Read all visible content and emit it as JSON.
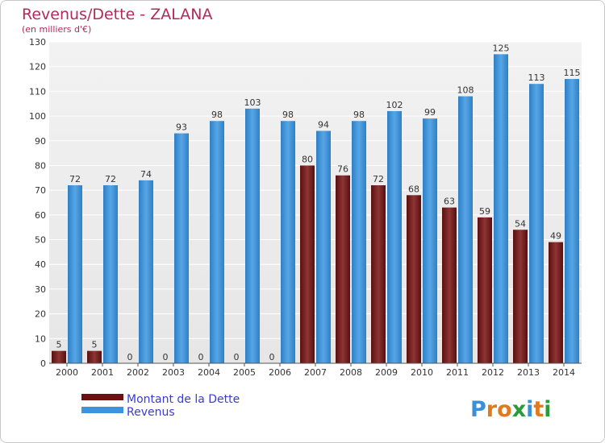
{
  "chart_data": {
    "type": "bar",
    "title": "Revenus/Dette - ZALANA",
    "subtitle": "(en milliers d'€)",
    "categories": [
      "2000",
      "2001",
      "2002",
      "2003",
      "2004",
      "2005",
      "2006",
      "2007",
      "2008",
      "2009",
      "2010",
      "2011",
      "2012",
      "2013",
      "2014"
    ],
    "series": [
      {
        "name": "Montant de la Dette",
        "color": "#7a1f1f",
        "values": [
          5,
          5,
          0,
          0,
          0,
          0,
          0,
          80,
          76,
          72,
          68,
          63,
          59,
          54,
          49
        ]
      },
      {
        "name": "Revenus",
        "color": "#3f93d8",
        "values": [
          72,
          72,
          74,
          93,
          98,
          103,
          98,
          94,
          98,
          102,
          99,
          108,
          125,
          113,
          115
        ]
      }
    ],
    "ylim": [
      0,
      130
    ],
    "ytick_step": 10,
    "grid": true,
    "legend_position": "bottom-left"
  },
  "logo": {
    "text": "Proxiti"
  }
}
